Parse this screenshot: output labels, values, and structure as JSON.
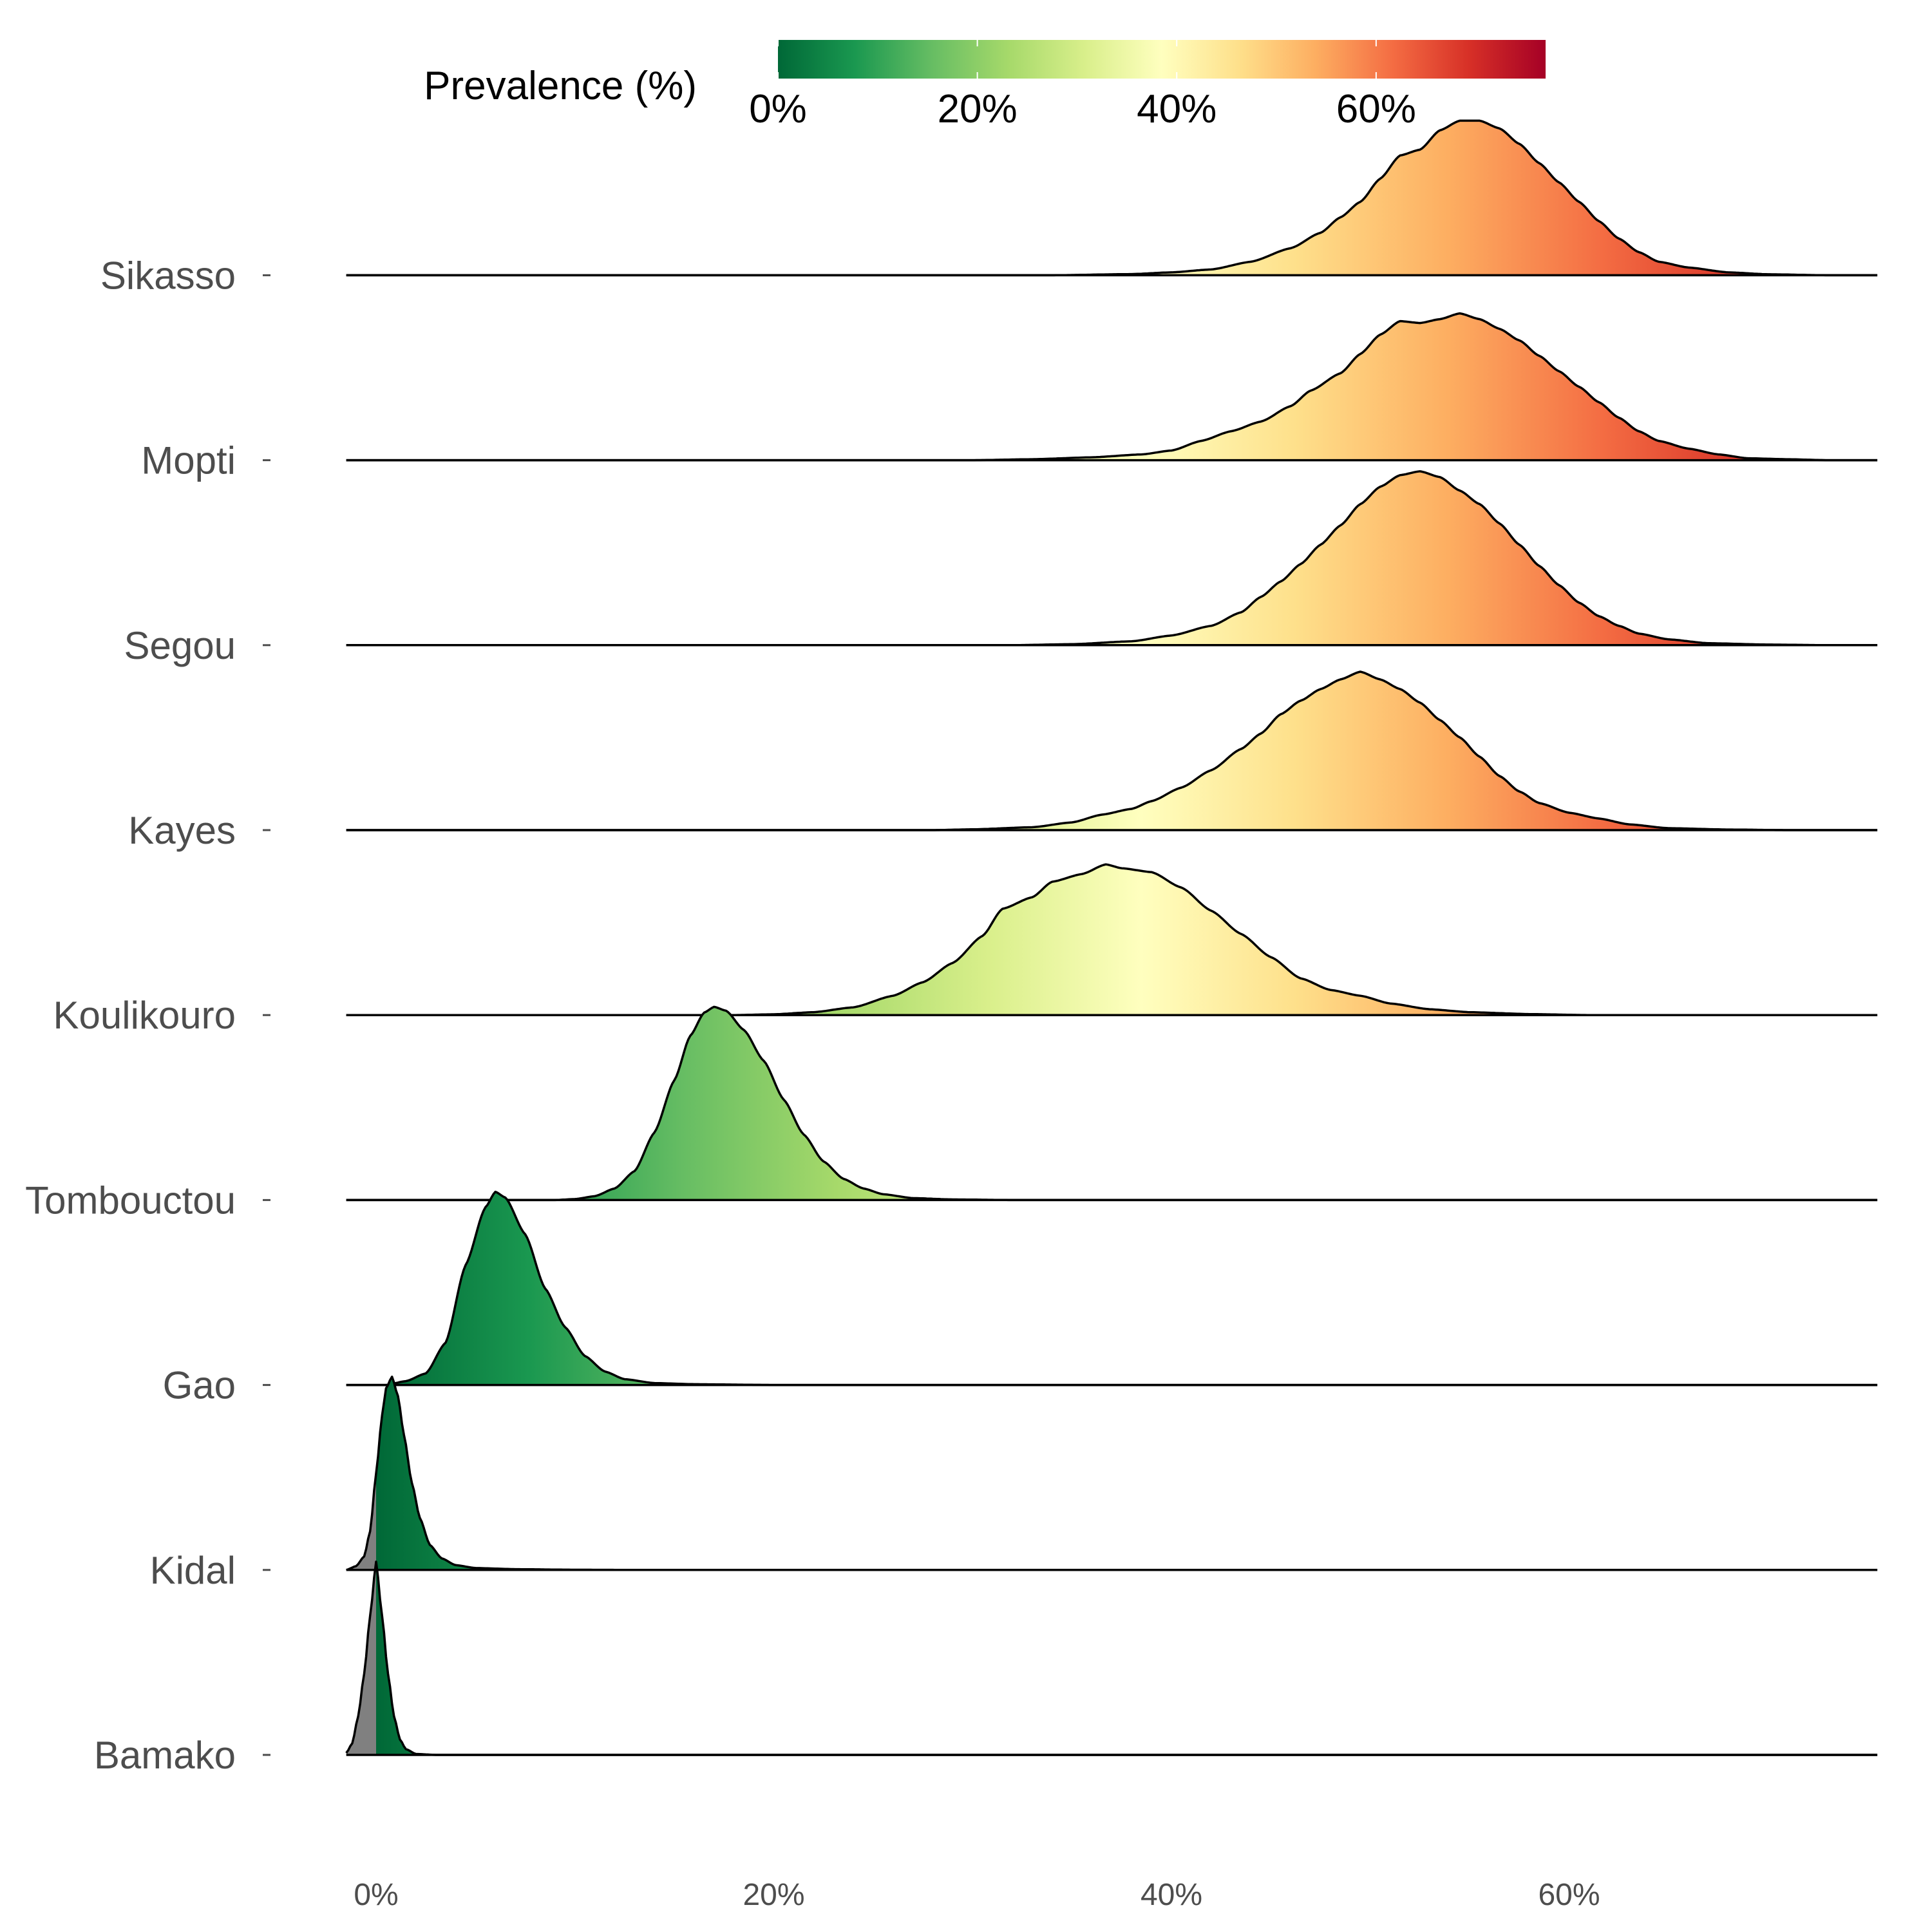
{
  "chart_data": {
    "type": "ridgeline",
    "title": "",
    "xlabel": "",
    "ylabel": "",
    "x_ticks": [
      0,
      20,
      40,
      60
    ],
    "x_tick_labels": [
      "0%",
      "20%",
      "40%",
      "60%"
    ],
    "xlim": [
      -1.5,
      75.5
    ],
    "legend": {
      "title": "Prevalence (%)",
      "position": "top",
      "ticks": [
        0,
        20,
        40,
        60
      ],
      "tick_labels": [
        "0%",
        "20%",
        "40%",
        "60%"
      ],
      "range": [
        0,
        77
      ]
    },
    "colorscale": [
      {
        "v": 0,
        "color": "#006837"
      },
      {
        "v": 7.7,
        "color": "#1a9850"
      },
      {
        "v": 15.4,
        "color": "#66bd63"
      },
      {
        "v": 23.1,
        "color": "#a6d96a"
      },
      {
        "v": 30.8,
        "color": "#d9ef8b"
      },
      {
        "v": 38.5,
        "color": "#ffffbf"
      },
      {
        "v": 46.2,
        "color": "#fee08b"
      },
      {
        "v": 53.9,
        "color": "#fdae61"
      },
      {
        "v": 61.6,
        "color": "#f46d43"
      },
      {
        "v": 69.3,
        "color": "#d73027"
      },
      {
        "v": 77,
        "color": "#a50026"
      }
    ],
    "na_color": "#808080",
    "series": [
      {
        "name": "Bamako",
        "peak": [
          [
            -1.5,
            0.01
          ],
          [
            -1.2,
            0.06
          ],
          [
            -0.9,
            0.2
          ],
          [
            -0.6,
            0.42
          ],
          [
            -0.3,
            0.72
          ],
          [
            0,
            1.0
          ],
          [
            0.3,
            0.72
          ],
          [
            0.6,
            0.42
          ],
          [
            0.9,
            0.2
          ],
          [
            1.2,
            0.08
          ],
          [
            1.5,
            0.03
          ],
          [
            2,
            0.005
          ],
          [
            3,
            0.0
          ]
        ],
        "knots": [
          [
            -1.5,
            0
          ],
          [
            75.5,
            0
          ]
        ]
      },
      {
        "name": "Kidal",
        "peak": [
          [
            -1.5,
            0.0
          ],
          [
            -1.0,
            0.02
          ],
          [
            -0.6,
            0.07
          ],
          [
            -0.3,
            0.2
          ],
          [
            0,
            0.5
          ],
          [
            0.3,
            0.8
          ],
          [
            0.5,
            0.94
          ],
          [
            0.8,
            1.0
          ],
          [
            1.1,
            0.9
          ],
          [
            1.4,
            0.7
          ],
          [
            1.8,
            0.45
          ],
          [
            2.2,
            0.27
          ],
          [
            2.7,
            0.13
          ],
          [
            3.3,
            0.06
          ],
          [
            4,
            0.025
          ],
          [
            5,
            0.01
          ],
          [
            7,
            0.004
          ],
          [
            10,
            0.001
          ],
          [
            14,
            0.0
          ]
        ],
        "knots": [
          [
            -1.5,
            0
          ],
          [
            75.5,
            0
          ]
        ]
      },
      {
        "name": "Gao",
        "knots": [
          [
            -1.5,
            0
          ],
          [
            0.5,
            0
          ],
          [
            1.5,
            0.02
          ],
          [
            2.5,
            0.06
          ],
          [
            3.5,
            0.22
          ],
          [
            4.5,
            0.62
          ],
          [
            5.5,
            0.92
          ],
          [
            6,
            1.0
          ],
          [
            6.5,
            0.97
          ],
          [
            7.5,
            0.78
          ],
          [
            8.5,
            0.5
          ],
          [
            9.5,
            0.3
          ],
          [
            10.5,
            0.15
          ],
          [
            11.5,
            0.07
          ],
          [
            12.5,
            0.03
          ],
          [
            14,
            0.01
          ],
          [
            16,
            0.004
          ],
          [
            20,
            0.0
          ],
          [
            75.5,
            0
          ]
        ]
      },
      {
        "name": "Tombouctou",
        "knots": [
          [
            -1.5,
            0
          ],
          [
            9,
            0
          ],
          [
            10,
            0.005
          ],
          [
            11,
            0.02
          ],
          [
            12,
            0.06
          ],
          [
            13,
            0.15
          ],
          [
            14,
            0.35
          ],
          [
            15,
            0.62
          ],
          [
            15.8,
            0.85
          ],
          [
            16.5,
            0.97
          ],
          [
            17,
            1.0
          ],
          [
            17.6,
            0.98
          ],
          [
            18.5,
            0.88
          ],
          [
            19.5,
            0.72
          ],
          [
            20.5,
            0.52
          ],
          [
            21.5,
            0.34
          ],
          [
            22.5,
            0.2
          ],
          [
            23.5,
            0.11
          ],
          [
            24.5,
            0.06
          ],
          [
            25.5,
            0.03
          ],
          [
            27,
            0.01
          ],
          [
            29,
            0.003
          ],
          [
            32,
            0.0
          ],
          [
            75.5,
            0
          ]
        ]
      },
      {
        "name": "Koulikouro",
        "knots": [
          [
            -1.5,
            0
          ],
          [
            18,
            0
          ],
          [
            20,
            0.004
          ],
          [
            22,
            0.015
          ],
          [
            24,
            0.04
          ],
          [
            26,
            0.1
          ],
          [
            27.5,
            0.17
          ],
          [
            29,
            0.27
          ],
          [
            30.5,
            0.41
          ],
          [
            31.5,
            0.55
          ],
          [
            33,
            0.61
          ],
          [
            34,
            0.69
          ],
          [
            35.5,
            0.73
          ],
          [
            36.7,
            0.78
          ],
          [
            37.5,
            0.76
          ],
          [
            39,
            0.74
          ],
          [
            40.5,
            0.66
          ],
          [
            42,
            0.54
          ],
          [
            43.5,
            0.42
          ],
          [
            45,
            0.3
          ],
          [
            46.5,
            0.19
          ],
          [
            48,
            0.13
          ],
          [
            49.5,
            0.1
          ],
          [
            51,
            0.06
          ],
          [
            53,
            0.03
          ],
          [
            55,
            0.015
          ],
          [
            58,
            0.005
          ],
          [
            61,
            0.0
          ],
          [
            75.5,
            0
          ]
        ]
      },
      {
        "name": "Kayes",
        "knots": [
          [
            -1.5,
            0
          ],
          [
            28,
            0
          ],
          [
            30,
            0.004
          ],
          [
            33,
            0.015
          ],
          [
            35,
            0.04
          ],
          [
            36.5,
            0.08
          ],
          [
            38,
            0.11
          ],
          [
            39,
            0.15
          ],
          [
            40.5,
            0.22
          ],
          [
            42,
            0.31
          ],
          [
            43.5,
            0.42
          ],
          [
            44.5,
            0.5
          ],
          [
            45.5,
            0.6
          ],
          [
            46.5,
            0.67
          ],
          [
            47.5,
            0.73
          ],
          [
            48.5,
            0.78
          ],
          [
            49.5,
            0.82
          ],
          [
            50.5,
            0.78
          ],
          [
            51.5,
            0.73
          ],
          [
            52.5,
            0.66
          ],
          [
            53.5,
            0.57
          ],
          [
            54.5,
            0.48
          ],
          [
            55.5,
            0.38
          ],
          [
            56.5,
            0.28
          ],
          [
            57.5,
            0.2
          ],
          [
            58.5,
            0.14
          ],
          [
            60,
            0.09
          ],
          [
            61.5,
            0.06
          ],
          [
            63,
            0.03
          ],
          [
            65,
            0.01
          ],
          [
            68,
            0.003
          ],
          [
            71,
            0.0
          ],
          [
            75.5,
            0
          ]
        ]
      },
      {
        "name": "Segou",
        "knots": [
          [
            -1.5,
            0
          ],
          [
            32,
            0
          ],
          [
            35,
            0.005
          ],
          [
            38,
            0.02
          ],
          [
            40,
            0.05
          ],
          [
            42,
            0.1
          ],
          [
            43.5,
            0.17
          ],
          [
            44.5,
            0.25
          ],
          [
            45.5,
            0.33
          ],
          [
            46.5,
            0.42
          ],
          [
            47.5,
            0.52
          ],
          [
            48.5,
            0.62
          ],
          [
            49.5,
            0.73
          ],
          [
            50.5,
            0.82
          ],
          [
            51.5,
            0.88
          ],
          [
            52.5,
            0.9
          ],
          [
            53.5,
            0.87
          ],
          [
            54.5,
            0.8
          ],
          [
            55.5,
            0.73
          ],
          [
            56.5,
            0.63
          ],
          [
            57.5,
            0.52
          ],
          [
            58.5,
            0.41
          ],
          [
            59.5,
            0.31
          ],
          [
            60.5,
            0.22
          ],
          [
            61.5,
            0.15
          ],
          [
            62.5,
            0.1
          ],
          [
            63.5,
            0.06
          ],
          [
            65,
            0.03
          ],
          [
            67,
            0.01
          ],
          [
            70,
            0.003
          ],
          [
            73,
            0.0
          ],
          [
            75.5,
            0
          ]
        ]
      },
      {
        "name": "Mopti",
        "knots": [
          [
            -1.5,
            0
          ],
          [
            30,
            0
          ],
          [
            33,
            0.005
          ],
          [
            36,
            0.015
          ],
          [
            38.5,
            0.03
          ],
          [
            40,
            0.05
          ],
          [
            41.5,
            0.1
          ],
          [
            43,
            0.15
          ],
          [
            44.5,
            0.2
          ],
          [
            46,
            0.28
          ],
          [
            47,
            0.36
          ],
          [
            48.5,
            0.45
          ],
          [
            49.5,
            0.55
          ],
          [
            50.5,
            0.65
          ],
          [
            51.5,
            0.72
          ],
          [
            52.5,
            0.71
          ],
          [
            53.5,
            0.73
          ],
          [
            54.5,
            0.76
          ],
          [
            55.5,
            0.73
          ],
          [
            56.5,
            0.68
          ],
          [
            57.5,
            0.62
          ],
          [
            58.5,
            0.54
          ],
          [
            59.5,
            0.46
          ],
          [
            60.5,
            0.38
          ],
          [
            61.5,
            0.3
          ],
          [
            62.5,
            0.22
          ],
          [
            63.5,
            0.15
          ],
          [
            64.5,
            0.1
          ],
          [
            66,
            0.06
          ],
          [
            67.5,
            0.03
          ],
          [
            69,
            0.01
          ],
          [
            71,
            0.005
          ],
          [
            73,
            0.0
          ],
          [
            75.5,
            0
          ]
        ]
      },
      {
        "name": "Sikasso",
        "knots": [
          [
            -1.5,
            0
          ],
          [
            34,
            0
          ],
          [
            38,
            0.006
          ],
          [
            40,
            0.015
          ],
          [
            42,
            0.03
          ],
          [
            44,
            0.07
          ],
          [
            46,
            0.14
          ],
          [
            47.5,
            0.22
          ],
          [
            48.5,
            0.3
          ],
          [
            49.5,
            0.38
          ],
          [
            50.5,
            0.5
          ],
          [
            51.5,
            0.62
          ],
          [
            52.5,
            0.65
          ],
          [
            53.5,
            0.75
          ],
          [
            54.5,
            0.8
          ],
          [
            55.5,
            0.8
          ],
          [
            56.5,
            0.76
          ],
          [
            57.5,
            0.68
          ],
          [
            58.5,
            0.58
          ],
          [
            59.5,
            0.48
          ],
          [
            60.5,
            0.38
          ],
          [
            61.5,
            0.28
          ],
          [
            62.5,
            0.19
          ],
          [
            63.5,
            0.12
          ],
          [
            64.5,
            0.07
          ],
          [
            66,
            0.04
          ],
          [
            68,
            0.015
          ],
          [
            70,
            0.005
          ],
          [
            73,
            0.0
          ],
          [
            75.5,
            0
          ]
        ]
      }
    ]
  }
}
